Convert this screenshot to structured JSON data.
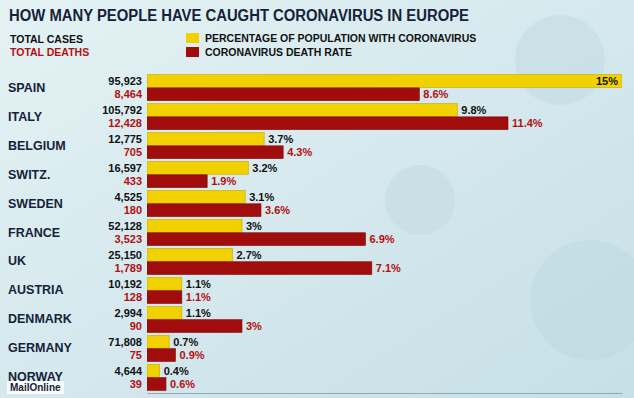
{
  "chart_data": {
    "type": "bar",
    "orientation": "horizontal",
    "title": "HOW MANY PEOPLE HAVE CAUGHT CORONAVIRUS IN EUROPE",
    "categories": [
      "SPAIN",
      "ITALY",
      "BELGIUM",
      "SWITZ.",
      "SWEDEN",
      "FRANCE",
      "UK",
      "AUSTRIA",
      "DENMARK",
      "GERMANY",
      "NORWAY"
    ],
    "columns": [
      {
        "name": "TOTAL CASES",
        "values": [
          95923,
          105792,
          12775,
          16597,
          4525,
          52128,
          25150,
          10192,
          2994,
          71808,
          4644
        ]
      },
      {
        "name": "TOTAL DEATHS",
        "values": [
          8464,
          12428,
          705,
          433,
          180,
          3523,
          1789,
          128,
          90,
          75,
          39
        ]
      }
    ],
    "series": [
      {
        "name": "PERCENTAGE OF POPULATION WITH CORONAVIRUS",
        "color": "#f2d100",
        "values": [
          15,
          9.8,
          3.7,
          3.2,
          3.1,
          3,
          2.7,
          1.1,
          1.1,
          0.7,
          0.4
        ],
        "value_labels": [
          "15%",
          "9.8%",
          "3.7%",
          "3.2%",
          "3.1%",
          "3%",
          "2.7%",
          "1.1%",
          "1.1%",
          "0.7%",
          "0.4%"
        ]
      },
      {
        "name": "CORONAVIRUS DEATH RATE",
        "color": "#a10d0d",
        "values": [
          8.6,
          11.4,
          4.3,
          1.9,
          3.6,
          6.9,
          7.1,
          1.1,
          3,
          0.9,
          0.6
        ],
        "value_labels": [
          "8.6%",
          "11.4%",
          "4.3%",
          "1.9%",
          "3.6%",
          "6.9%",
          "7.1%",
          "1.1%",
          "3%",
          "0.9%",
          "0.6%"
        ]
      }
    ],
    "xlim": [
      0,
      15
    ],
    "data_labels": true,
    "tick_labels": false,
    "grid": false,
    "legend": "top",
    "annotations": [
      "MailOnline"
    ]
  }
}
